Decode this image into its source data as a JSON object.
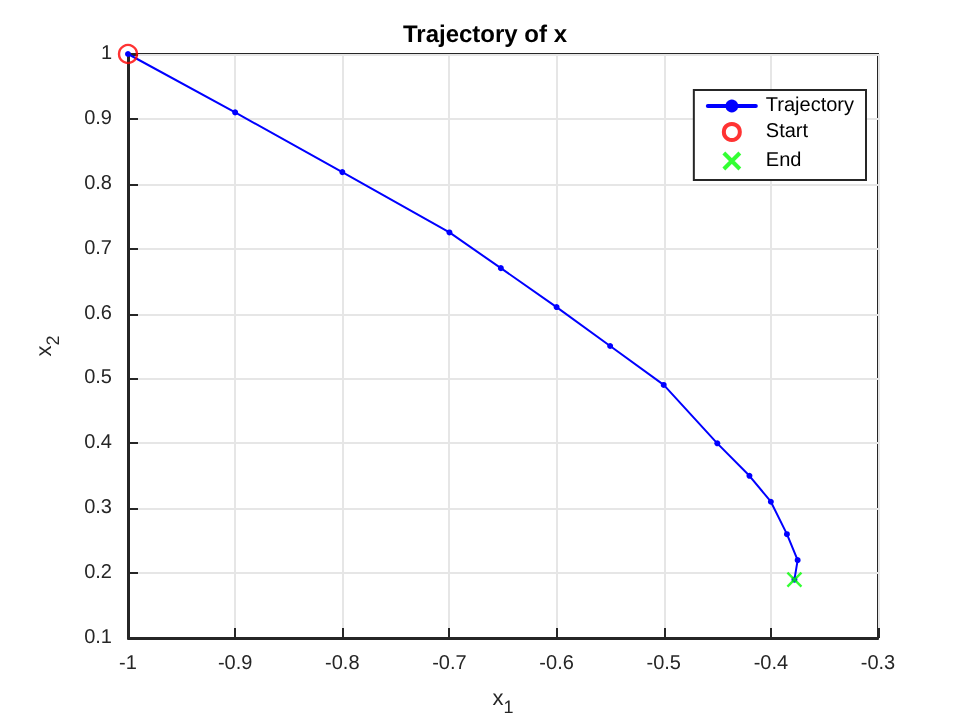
{
  "chart_data": {
    "type": "line",
    "title": "Trajectory of x",
    "xlabel": "x$_{1}$",
    "ylabel": "x$_{2}$",
    "xlim": [
      -1,
      -0.3
    ],
    "xticks": [
      -1,
      -0.9,
      -0.8,
      -0.7,
      -0.6,
      -0.5,
      -0.4,
      -0.3
    ],
    "ylim": [
      0.1,
      1
    ],
    "yticks": [
      0.1,
      0.2,
      0.3,
      0.4,
      0.5,
      0.6,
      0.7,
      0.8,
      0.9,
      1
    ],
    "grid": true,
    "legend": "top right",
    "series": [
      {
        "name": "Trajectory",
        "color": "#0000ff",
        "marker": "circle",
        "line_style": "solid",
        "x": [
          -1,
          -0.9,
          -0.8,
          -0.7,
          -0.652,
          -0.6,
          -0.55,
          -0.5,
          -0.45,
          -0.42,
          -0.4,
          -0.385,
          -0.375,
          -0.378
        ],
        "values": [
          1,
          0.91,
          0.818,
          0.725,
          0.67,
          0.61,
          0.55,
          0.49,
          0.4,
          0.35,
          0.31,
          0.26,
          0.22,
          0.19
        ]
      },
      {
        "name": "Start",
        "type": "scatter",
        "color": "#ff0000",
        "marker": "circle",
        "x": [
          -1
        ],
        "values": [
          1
        ]
      },
      {
        "name": "End",
        "type": "scatter",
        "color": "#00ff00",
        "marker": "cross",
        "x": [
          -0.378
        ],
        "values": [
          0.19
        ]
      }
    ]
  }
}
